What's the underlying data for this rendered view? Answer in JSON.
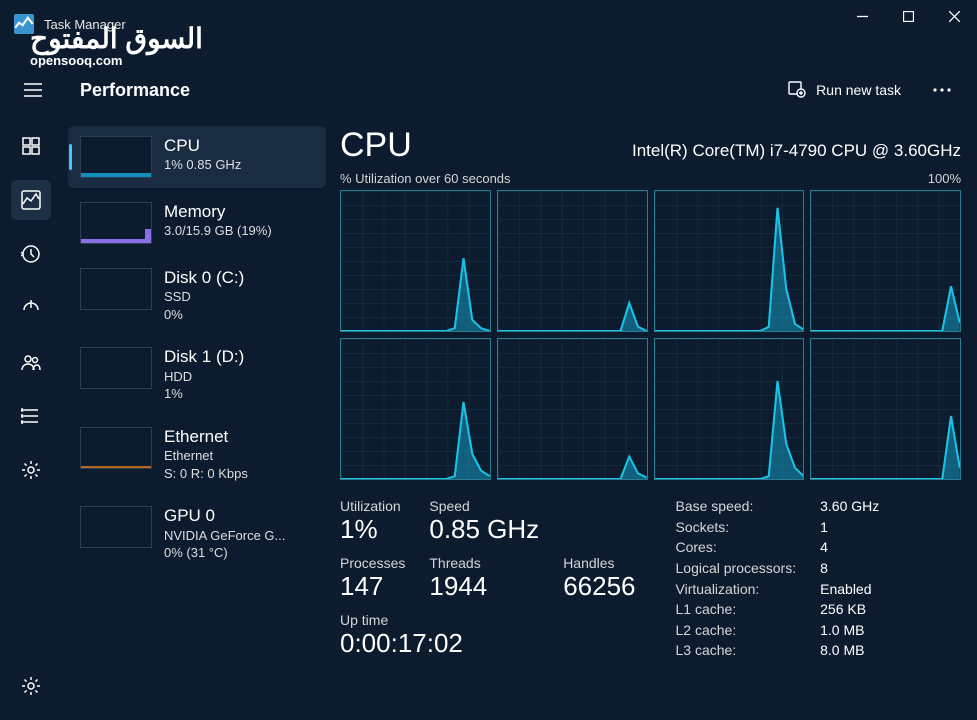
{
  "window": {
    "title": "Task Manager"
  },
  "header": {
    "page_title": "Performance",
    "run_task": "Run new task"
  },
  "watermark": {
    "ar": "السوق المفتوح",
    "en": "opensooq.com"
  },
  "colors": {
    "bg": "#0d1b2e",
    "chart_border": "#2d7b8f",
    "chart_grid": "#16384a",
    "chart_stroke": "#18c3e6",
    "chart_fill": "rgba(22,180,222,0.45)",
    "memory_accent": "#8a6ee8",
    "ethernet_accent": "#b5651d",
    "selection": "#192c42",
    "accent": "#4cc2ff"
  },
  "sidebar": {
    "items": [
      {
        "key": "cpu",
        "title": "CPU",
        "sub1": "1% 0.85 GHz"
      },
      {
        "key": "memory",
        "title": "Memory",
        "sub1": "3.0/15.9 GB (19%)"
      },
      {
        "key": "disk0",
        "title": "Disk 0 (C:)",
        "sub1": "SSD",
        "sub2": "0%"
      },
      {
        "key": "disk1",
        "title": "Disk 1 (D:)",
        "sub1": "HDD",
        "sub2": "1%"
      },
      {
        "key": "ethernet",
        "title": "Ethernet",
        "sub1": "Ethernet",
        "sub2": "S: 0 R: 0 Kbps"
      },
      {
        "key": "gpu0",
        "title": "GPU 0",
        "sub1": "NVIDIA GeForce G...",
        "sub2": "0% (31 °C)"
      }
    ]
  },
  "main": {
    "title": "CPU",
    "cpu_name": "Intel(R) Core(TM) i7-4790 CPU @ 3.60GHz",
    "chart_left_label": "% Utilization over 60 seconds",
    "chart_right_label": "100%",
    "chart": {
      "rows": 2,
      "cols": 4,
      "ylim": [
        0,
        100
      ],
      "xspan_seconds": 60,
      "grid": {
        "x_divisions": 7,
        "y_divisions": 10
      },
      "cells": [
        [
          0,
          0,
          0,
          0,
          0,
          0,
          0,
          0,
          0,
          0,
          0,
          0,
          0,
          2,
          52,
          8,
          2,
          0
        ],
        [
          0,
          0,
          0,
          0,
          0,
          0,
          0,
          0,
          0,
          0,
          0,
          0,
          0,
          0,
          0,
          20,
          3,
          0
        ],
        [
          0,
          0,
          0,
          0,
          0,
          0,
          0,
          0,
          0,
          0,
          0,
          0,
          0,
          3,
          88,
          30,
          5,
          1
        ],
        [
          0,
          0,
          0,
          0,
          0,
          0,
          0,
          0,
          0,
          0,
          0,
          0,
          0,
          0,
          0,
          0,
          32,
          6
        ],
        [
          0,
          0,
          0,
          0,
          0,
          0,
          0,
          0,
          0,
          0,
          0,
          0,
          0,
          2,
          55,
          18,
          6,
          2
        ],
        [
          0,
          0,
          0,
          0,
          0,
          0,
          0,
          0,
          0,
          0,
          0,
          0,
          0,
          0,
          0,
          16,
          4,
          1
        ],
        [
          0,
          0,
          0,
          0,
          0,
          0,
          0,
          0,
          0,
          0,
          0,
          0,
          0,
          2,
          70,
          25,
          8,
          2
        ],
        [
          0,
          0,
          0,
          0,
          0,
          0,
          0,
          0,
          0,
          0,
          0,
          0,
          0,
          0,
          0,
          0,
          45,
          8
        ]
      ]
    },
    "stats_left": [
      {
        "label": "Utilization",
        "value": "1%"
      },
      {
        "label": "Speed",
        "value": "0.85 GHz"
      },
      {
        "label": "Processes",
        "value": "147"
      },
      {
        "label": "Threads",
        "value": "1944"
      },
      {
        "label": "Handles",
        "value": "66256"
      }
    ],
    "uptime": {
      "label": "Up time",
      "value": "0:00:17:02"
    },
    "stats_right": [
      {
        "label": "Base speed:",
        "value": "3.60 GHz"
      },
      {
        "label": "Sockets:",
        "value": "1"
      },
      {
        "label": "Cores:",
        "value": "4"
      },
      {
        "label": "Logical processors:",
        "value": "8"
      },
      {
        "label": "Virtualization:",
        "value": "Enabled"
      },
      {
        "label": "L1 cache:",
        "value": "256 KB"
      },
      {
        "label": "L2 cache:",
        "value": "1.0 MB"
      },
      {
        "label": "L3 cache:",
        "value": "8.0 MB"
      }
    ]
  }
}
